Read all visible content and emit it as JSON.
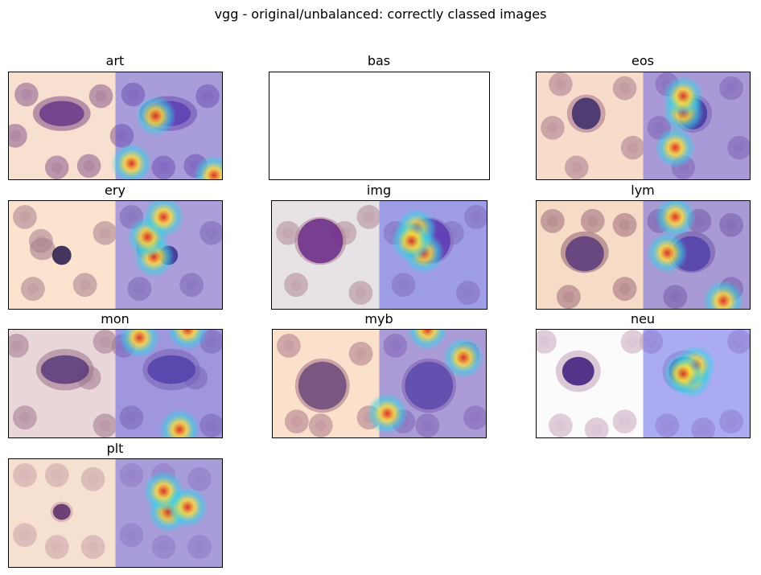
{
  "figure": {
    "title": "vgg - original/unbalanced: correctly classed images"
  },
  "panels": [
    {
      "label": "art",
      "has_image": true,
      "bg": "#f8e0d0",
      "cell": "#8a5a8a",
      "nucleus": "#6a3a8a"
    },
    {
      "label": "bas",
      "has_image": false
    },
    {
      "label": "eos",
      "has_image": true,
      "bg": "#f8dccb",
      "cell": "#a8788c",
      "nucleus": "#3a2a6a"
    },
    {
      "label": "ery",
      "has_image": true,
      "bg": "#fce3cf",
      "cell": "#a67d8c",
      "nucleus": "#22164a"
    },
    {
      "label": "img",
      "has_image": true,
      "bg": "#e6e2e6",
      "cell": "#b08898",
      "nucleus": "#6a2a8a"
    },
    {
      "label": "lym",
      "has_image": true,
      "bg": "#f6dcc6",
      "cell": "#9a6a7a",
      "nucleus": "#5a3a7a"
    },
    {
      "label": "mon",
      "has_image": true,
      "bg": "#e8d6d8",
      "cell": "#a07890",
      "nucleus": "#5a3a7a"
    },
    {
      "label": "myb",
      "has_image": true,
      "bg": "#fbe1cc",
      "cell": "#ad7a8a",
      "nucleus": "#6a4a7a"
    },
    {
      "label": "neu",
      "has_image": true,
      "bg": "#fbfbfb",
      "cell": "#c8a8c0",
      "nucleus": "#3a1a7a"
    },
    {
      "label": "plt",
      "has_image": true,
      "bg": "#f6e0d0",
      "cell": "#c8a0a8",
      "nucleus": "#5a2a6a"
    }
  ],
  "colors": {
    "heat_base": "#4a4ae6",
    "heat_mid": "#3ad0e6",
    "heat_hot": "#ffe03a",
    "heat_max": "#e02a1a"
  }
}
